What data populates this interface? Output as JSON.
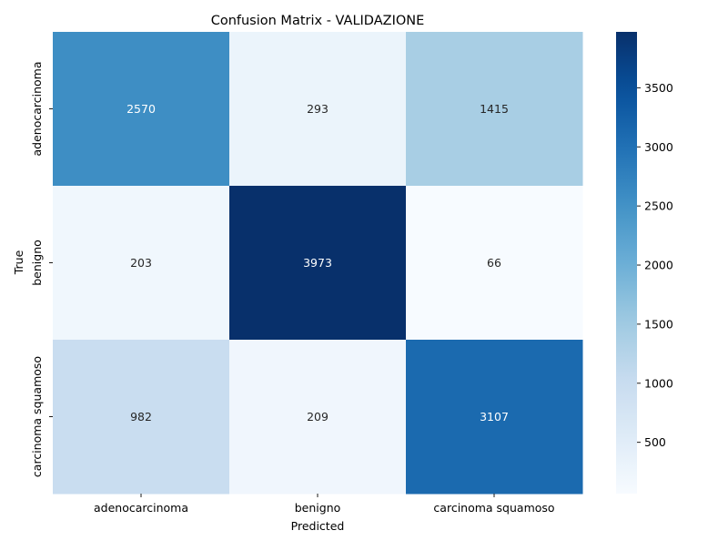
{
  "chart_data": {
    "type": "heatmap",
    "title": "Confusion Matrix - VALIDAZIONE",
    "xlabel": "Predicted",
    "ylabel": "True",
    "x_categories": [
      "adenocarcinoma",
      "benigno",
      "carcinoma squamoso"
    ],
    "y_categories": [
      "adenocarcinoma",
      "benigno",
      "carcinoma squamoso"
    ],
    "values": [
      [
        2570,
        293,
        1415
      ],
      [
        203,
        3973,
        66
      ],
      [
        982,
        209,
        3107
      ]
    ],
    "colormap": "Blues",
    "color_range": [
      66,
      3973
    ],
    "colorbar_ticks": [
      500,
      1000,
      1500,
      2000,
      2500,
      3000,
      3500
    ],
    "colorbar_tick_labels": [
      "500",
      "1000",
      "1500",
      "2000",
      "2500",
      "3000",
      "3500"
    ],
    "grid": false,
    "legend": "colorbar-right"
  }
}
